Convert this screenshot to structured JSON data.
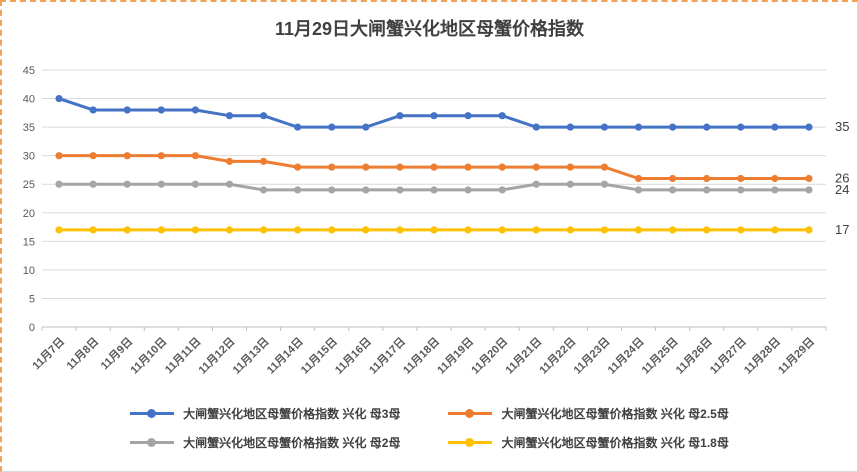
{
  "chart_data": {
    "type": "line",
    "title": "11月29日大闸蟹兴化地区母蟹价格指数",
    "xlabel": "",
    "ylabel": "",
    "ylim": [
      0,
      45
    ],
    "yticks": [
      0,
      5,
      10,
      15,
      20,
      25,
      30,
      35,
      40,
      45
    ],
    "grid": true,
    "legend_position": "bottom",
    "categories": [
      "11月7日",
      "11月8日",
      "11月9日",
      "11月10日",
      "11月11日",
      "11月12日",
      "11月13日",
      "11月14日",
      "11月15日",
      "11月16日",
      "11月17日",
      "11月18日",
      "11月19日",
      "11月20日",
      "11月21日",
      "11月22日",
      "11月23日",
      "11月24日",
      "11月25日",
      "11月26日",
      "11月27日",
      "11月28日",
      "11月29日"
    ],
    "series": [
      {
        "name": "大闸蟹兴化地区母蟹价格指数 兴化 母3母",
        "color": "#4472C4",
        "values": [
          40,
          38,
          38,
          38,
          38,
          37,
          37,
          35,
          35,
          35,
          37,
          37,
          37,
          37,
          35,
          35,
          35,
          35,
          35,
          35,
          35,
          35,
          35
        ],
        "end_label": "35"
      },
      {
        "name": "大闸蟹兴化地区母蟹价格指数 兴化 母2.5母",
        "color": "#ED7D31",
        "values": [
          30,
          30,
          30,
          30,
          30,
          29,
          29,
          28,
          28,
          28,
          28,
          28,
          28,
          28,
          28,
          28,
          28,
          26,
          26,
          26,
          26,
          26,
          26
        ],
        "end_label": "26"
      },
      {
        "name": "大闸蟹兴化地区母蟹价格指数 兴化 母2母",
        "color": "#A5A5A5",
        "values": [
          25,
          25,
          25,
          25,
          25,
          25,
          24,
          24,
          24,
          24,
          24,
          24,
          24,
          24,
          25,
          25,
          25,
          24,
          24,
          24,
          24,
          24,
          24
        ],
        "end_label": "24"
      },
      {
        "name": "大闸蟹兴化地区母蟹价格指数 兴化 母1.8母",
        "color": "#FFC000",
        "values": [
          17,
          17,
          17,
          17,
          17,
          17,
          17,
          17,
          17,
          17,
          17,
          17,
          17,
          17,
          17,
          17,
          17,
          17,
          17,
          17,
          17,
          17,
          17
        ],
        "end_label": "17"
      }
    ]
  }
}
